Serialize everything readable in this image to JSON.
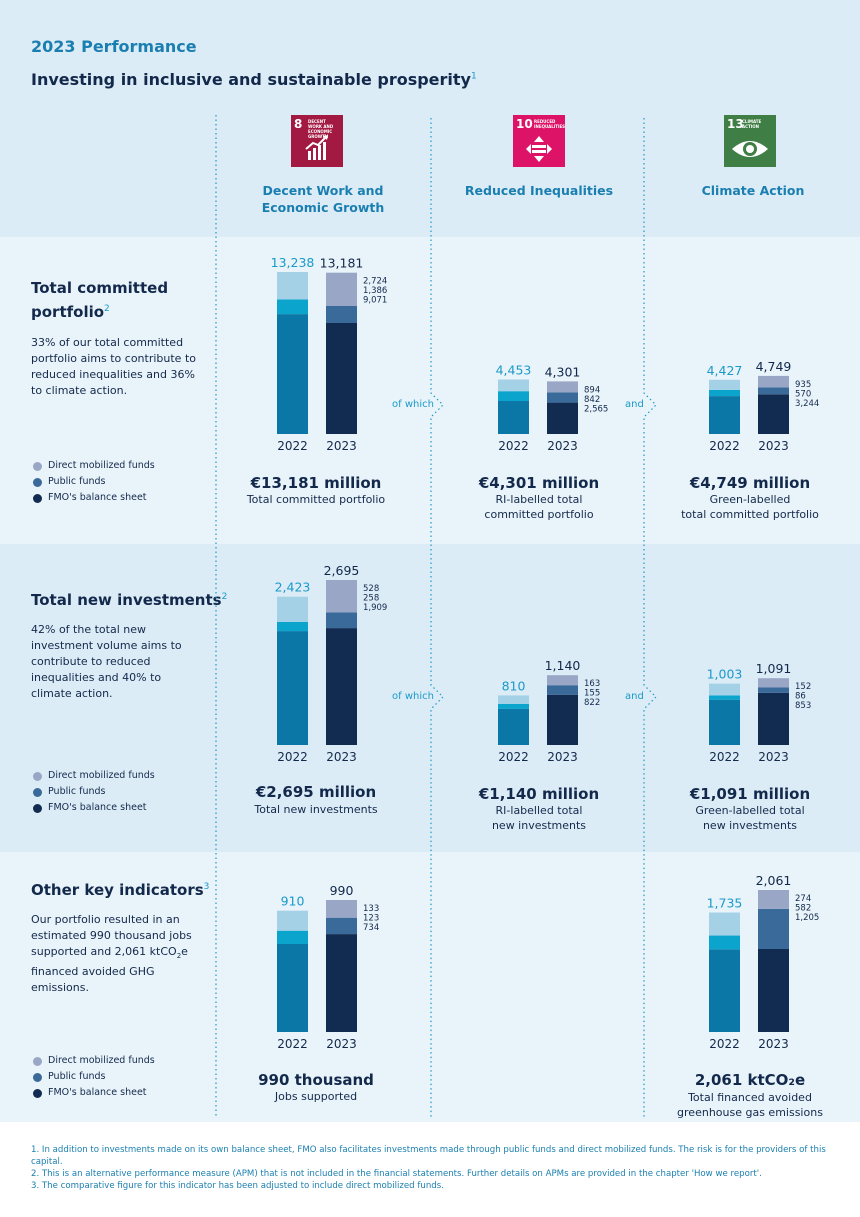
{
  "page": {
    "title": "2023 Performance",
    "subtitle": "Investing in inclusive and sustainable prosperity",
    "subtitle_sup": "1"
  },
  "colors": {
    "balance_2022": "#0b77a6",
    "public_2022": "#0aa4cd",
    "direct_2022": "#a5d1e6",
    "balance_2023": "#122b50",
    "public_2023": "#3a6a9a",
    "direct_2023": "#9aa6c6",
    "value_2022": "#1a9ac9",
    "sdg8": "#a21942",
    "sdg10": "#dd1367",
    "sdg13": "#3f7e44"
  },
  "columns": [
    {
      "sdg_num": "8",
      "sdg_label": "DECENT WORK AND ECONOMIC GROWTH",
      "heading": "Decent Work and\nEconomic Growth",
      "icon": "growth-chart-icon"
    },
    {
      "sdg_num": "10",
      "sdg_label": "REDUCED INEQUALITIES",
      "heading": "Reduced Inequalities",
      "icon": "equality-icon"
    },
    {
      "sdg_num": "13",
      "sdg_label": "CLIMATE ACTION",
      "heading": "Climate Action",
      "icon": "eye-globe-icon"
    }
  ],
  "sections": [
    {
      "title": "Total committed\nportfolio",
      "sup": "2",
      "text": "33% of our total committed portfolio aims to contribute to reduced inequalities and 36% to climate action.",
      "legend": [
        "Direct mobilized funds",
        "Public funds",
        "FMO's balance sheet"
      ],
      "connector_1": "of which",
      "connector_2": "and",
      "summaries": [
        {
          "big": "€13,181 million",
          "caption": "Total committed portfolio"
        },
        {
          "big": "€4,301 million",
          "caption": "RI-labelled total\ncommitted portfolio"
        },
        {
          "big": "€4,749 million",
          "caption": "Green-labelled\ntotal committed portfolio"
        }
      ]
    },
    {
      "title": "Total new investments",
      "sup": "2",
      "text": "42% of the total new investment volume aims to contribute to reduced inequalities and 40% to climate action.",
      "legend": [
        "Direct mobilized funds",
        "Public funds",
        "FMO's balance sheet"
      ],
      "connector_1": "of which",
      "connector_2": "and",
      "summaries": [
        {
          "big": "€2,695 million",
          "caption": "Total new investments"
        },
        {
          "big": "€1,140 million",
          "caption": "RI-labelled total\nnew investments"
        },
        {
          "big": "€1,091 million",
          "caption": "Green-labelled total\nnew investments"
        }
      ]
    },
    {
      "title": "Other key indicators",
      "sup": "3",
      "text_before": "Our portfolio resulted in an estimated 990 thousand jobs supported and 2,061 ktCO",
      "text_sub": "2",
      "text_after": "e financed avoided GHG emissions.",
      "legend": [
        "Direct mobilized funds",
        "Public funds",
        "FMO's balance sheet"
      ],
      "summaries": [
        {
          "big": "990 thousand",
          "caption": "Jobs supported"
        },
        {
          "big": "2,061 ktCO₂e",
          "caption": "Total financed avoided\ngreenhouse gas emissions"
        }
      ]
    }
  ],
  "footnotes": [
    "1.  In addition to investments made on its own balance sheet, FMO also facilitates investments made through public funds and direct mobilized funds. The risk is for the providers of this capital.",
    "2.  This is an alternative performance measure (APM) that is not included in the financial statements. Further details on APMs are provided in the chapter 'How we report'.",
    "3.  The comparative figure for this indicator has been adjusted to include direct mobilized funds."
  ],
  "chart_data": [
    {
      "type": "bar",
      "id": "committed-total",
      "title": "Total committed portfolio",
      "categories": [
        "2022",
        "2023"
      ],
      "totals": [
        "13,238",
        "13,181"
      ],
      "total_values": [
        13238,
        13181
      ],
      "series": [
        {
          "name": "FMO's balance sheet",
          "values": [
            9800,
            9071
          ]
        },
        {
          "name": "Public funds",
          "values": [
            1200,
            1386
          ]
        },
        {
          "name": "Direct mobilized funds",
          "values": [
            2238,
            2724
          ]
        }
      ],
      "labels_2023": [
        "2,724",
        "1,386",
        "9,071"
      ],
      "ylim": [
        0,
        13238
      ]
    },
    {
      "type": "bar",
      "id": "committed-ri",
      "title": "RI-labelled total committed portfolio",
      "categories": [
        "2022",
        "2023"
      ],
      "totals": [
        "4,453",
        "4,301"
      ],
      "total_values": [
        4453,
        4301
      ],
      "series": [
        {
          "name": "FMO's balance sheet",
          "values": [
            2700,
            2565
          ]
        },
        {
          "name": "Public funds",
          "values": [
            800,
            842
          ]
        },
        {
          "name": "Direct mobilized funds",
          "values": [
            953,
            894
          ]
        }
      ],
      "labels_2023": [
        "894",
        "842",
        "2,565"
      ],
      "ylim": [
        0,
        13238
      ]
    },
    {
      "type": "bar",
      "id": "committed-green",
      "title": "Green-labelled total committed portfolio",
      "categories": [
        "2022",
        "2023"
      ],
      "totals": [
        "4,427",
        "4,749"
      ],
      "total_values": [
        4427,
        4749
      ],
      "series": [
        {
          "name": "FMO's balance sheet",
          "values": [
            3100,
            3244
          ]
        },
        {
          "name": "Public funds",
          "values": [
            500,
            570
          ]
        },
        {
          "name": "Direct mobilized funds",
          "values": [
            827,
            935
          ]
        }
      ],
      "labels_2023": [
        "935",
        "570",
        "3,244"
      ],
      "ylim": [
        0,
        13238
      ]
    },
    {
      "type": "bar",
      "id": "new-total",
      "title": "Total new investments",
      "categories": [
        "2022",
        "2023"
      ],
      "totals": [
        "2,423",
        "2,695"
      ],
      "total_values": [
        2423,
        2695
      ],
      "series": [
        {
          "name": "FMO's balance sheet",
          "values": [
            1860,
            1909
          ]
        },
        {
          "name": "Public funds",
          "values": [
            150,
            258
          ]
        },
        {
          "name": "Direct mobilized funds",
          "values": [
            413,
            528
          ]
        }
      ],
      "labels_2023": [
        "528",
        "258",
        "1,909"
      ],
      "ylim": [
        0,
        2695
      ]
    },
    {
      "type": "bar",
      "id": "new-ri",
      "title": "RI-labelled total new investments",
      "categories": [
        "2022",
        "2023"
      ],
      "totals": [
        "810",
        "1,140"
      ],
      "total_values": [
        810,
        1140
      ],
      "series": [
        {
          "name": "FMO's balance sheet",
          "values": [
            590,
            822
          ]
        },
        {
          "name": "Public funds",
          "values": [
            80,
            155
          ]
        },
        {
          "name": "Direct mobilized funds",
          "values": [
            140,
            163
          ]
        }
      ],
      "labels_2023": [
        "163",
        "155",
        "822"
      ],
      "ylim": [
        0,
        2695
      ]
    },
    {
      "type": "bar",
      "id": "new-green",
      "title": "Green-labelled total new investments",
      "categories": [
        "2022",
        "2023"
      ],
      "totals": [
        "1,003",
        "1,091"
      ],
      "total_values": [
        1003,
        1091
      ],
      "series": [
        {
          "name": "FMO's balance sheet",
          "values": [
            740,
            853
          ]
        },
        {
          "name": "Public funds",
          "values": [
            70,
            86
          ]
        },
        {
          "name": "Direct mobilized funds",
          "values": [
            193,
            152
          ]
        }
      ],
      "labels_2023": [
        "152",
        "86",
        "853"
      ],
      "ylim": [
        0,
        2695
      ]
    },
    {
      "type": "bar",
      "id": "jobs",
      "title": "Jobs supported",
      "categories": [
        "2022",
        "2023"
      ],
      "totals": [
        "910",
        "990"
      ],
      "total_values": [
        910,
        990
      ],
      "series": [
        {
          "name": "FMO's balance sheet",
          "values": [
            660,
            734
          ]
        },
        {
          "name": "Public funds",
          "values": [
            100,
            123
          ]
        },
        {
          "name": "Direct mobilized funds",
          "values": [
            150,
            133
          ]
        }
      ],
      "labels_2023": [
        "133",
        "123",
        "734"
      ],
      "ylim": [
        0,
        990
      ]
    },
    {
      "type": "bar",
      "id": "ghg",
      "title": "Total financed avoided greenhouse gas emissions",
      "categories": [
        "2022",
        "2023"
      ],
      "totals": [
        "1,735",
        "2,061"
      ],
      "total_values": [
        1735,
        2061
      ],
      "series": [
        {
          "name": "FMO's balance sheet",
          "values": [
            1200,
            1205
          ]
        },
        {
          "name": "Public funds",
          "values": [
            200,
            582
          ]
        },
        {
          "name": "Direct mobilized funds",
          "values": [
            335,
            274
          ]
        }
      ],
      "labels_2023": [
        "274",
        "582",
        "1,205"
      ],
      "ylim": [
        0,
        2061
      ]
    }
  ]
}
